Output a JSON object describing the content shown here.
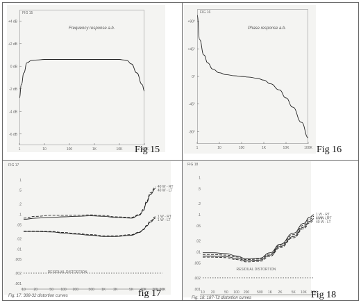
{
  "captions": {
    "fig15": "Fig 15",
    "fig16": "Fig 16",
    "fig17": "fig 17",
    "fig18": "Fig 18"
  },
  "chart_data": [
    {
      "type": "line",
      "id": "fig15",
      "corner_label": "FIG 15",
      "title": "Frequency response a.b.",
      "xscale": "log",
      "x_ticks": [
        {
          "v": 1,
          "t": "1"
        },
        {
          "v": 10,
          "t": "10"
        },
        {
          "v": 100,
          "t": "100"
        },
        {
          "v": 1000,
          "t": "1K"
        },
        {
          "v": 10000,
          "t": "10K"
        },
        {
          "v": 100000,
          "t": "100K"
        }
      ],
      "y_ticks": [
        {
          "v": 4,
          "t": "+4 dB"
        },
        {
          "v": 2,
          "t": "+2 dB"
        },
        {
          "v": 0,
          "t": "0 dB"
        },
        {
          "v": -2,
          "t": "-2 dB"
        },
        {
          "v": -4,
          "t": "-4 dB"
        },
        {
          "v": -6,
          "t": "-6 dB"
        }
      ],
      "ylim": [
        -7,
        5
      ],
      "series": [
        {
          "x": [
            1,
            1.2,
            1.5,
            2,
            3,
            5,
            10,
            30,
            100,
            1000,
            5000,
            10000,
            15000,
            20000,
            30000,
            50000,
            80000,
            100000
          ],
          "y": [
            -2.8,
            -1.6,
            -0.6,
            0.3,
            0.5,
            0.55,
            0.6,
            0.6,
            0.6,
            0.6,
            0.6,
            0.6,
            0.55,
            0.5,
            0.2,
            -0.6,
            -1.6,
            -2.2
          ]
        }
      ]
    },
    {
      "type": "line",
      "id": "fig16",
      "corner_label": "FIG 16",
      "title": "Phase response a.b.",
      "xscale": "log",
      "x_ticks": [
        {
          "v": 1,
          "t": "1"
        },
        {
          "v": 10,
          "t": "10"
        },
        {
          "v": 100,
          "t": "100"
        },
        {
          "v": 1000,
          "t": "1K"
        },
        {
          "v": 10000,
          "t": "10K"
        },
        {
          "v": 100000,
          "t": "100K"
        }
      ],
      "y_ticks": [
        {
          "v": 90,
          "t": "+90°"
        },
        {
          "v": 45,
          "t": "+45°"
        },
        {
          "v": 0,
          "t": "0°"
        },
        {
          "v": -45,
          "t": "-45°"
        },
        {
          "v": -90,
          "t": "-90°"
        }
      ],
      "ylim": [
        -110,
        110
      ],
      "series": [
        {
          "x": [
            1,
            1.3,
            2,
            3,
            5,
            10,
            20,
            50,
            100,
            200,
            500,
            1000,
            2000,
            5000,
            10000,
            20000,
            50000,
            100000
          ],
          "y": [
            100,
            60,
            35,
            22,
            12,
            6,
            3,
            1,
            0,
            -1,
            -3,
            -6,
            -12,
            -22,
            -35,
            -50,
            -75,
            -100
          ]
        }
      ]
    },
    {
      "type": "line",
      "id": "fig17",
      "corner_label": "FIG 17",
      "footnote": "Fig. 17. 308-32 distortion curves",
      "xscale": "log",
      "x_ticks": [
        {
          "v": 10,
          "t": "10"
        },
        {
          "v": 20,
          "t": "20"
        },
        {
          "v": 50,
          "t": "50"
        },
        {
          "v": 100,
          "t": "100"
        },
        {
          "v": 200,
          "t": "200"
        },
        {
          "v": 500,
          "t": "500"
        },
        {
          "v": 1000,
          "t": "1K"
        },
        {
          "v": 2000,
          "t": "2K"
        },
        {
          "v": 5000,
          "t": "5K"
        },
        {
          "v": 10000,
          "t": "10K"
        },
        {
          "v": 20000,
          "t": "20K"
        },
        {
          "v": 30000,
          "t": "30K"
        }
      ],
      "yscale": "log",
      "y_ticks": [
        {
          "v": 1,
          "t": "1"
        },
        {
          "v": 0.5,
          "t": ".5"
        },
        {
          "v": 0.2,
          "t": ".2"
        },
        {
          "v": 0.1,
          "t": ".1"
        },
        {
          "v": 0.05,
          "t": ".05"
        },
        {
          "v": 0.02,
          "t": ".02"
        },
        {
          "v": 0.01,
          "t": ".01"
        },
        {
          "v": 0.005,
          "t": ".005"
        },
        {
          "v": 0.002,
          "t": ".002"
        },
        {
          "v": 0.001,
          "t": ".001"
        }
      ],
      "ylim": [
        0.001,
        1.5
      ],
      "annotations": [
        {
          "text": "RESIDUAL DISTORTION",
          "x": 40,
          "y": 0.002
        }
      ],
      "reference_line": {
        "y": 0.002,
        "x": [
          10,
          30000
        ]
      },
      "series": [
        {
          "name": "40 W - RT",
          "style": "dash",
          "x": [
            10,
            20,
            50,
            100,
            200,
            500,
            1000,
            2000,
            5000,
            8000,
            10000,
            12000,
            15000,
            20000
          ],
          "y": [
            0.078,
            0.088,
            0.094,
            0.094,
            0.095,
            0.097,
            0.093,
            0.085,
            0.082,
            0.1,
            0.14,
            0.24,
            0.42,
            0.62
          ]
        },
        {
          "name": "40 W - LT",
          "style": "solid",
          "x": [
            10,
            20,
            50,
            100,
            200,
            500,
            1000,
            2000,
            5000,
            8000,
            10000,
            12000,
            15000,
            20000
          ],
          "y": [
            0.072,
            0.078,
            0.082,
            0.085,
            0.088,
            0.091,
            0.088,
            0.082,
            0.078,
            0.095,
            0.13,
            0.22,
            0.38,
            0.56
          ]
        },
        {
          "name": "1 W - RT",
          "style": "dash",
          "x": [
            10,
            20,
            50,
            100,
            200,
            500,
            1000,
            2000,
            5000,
            8000,
            10000,
            12000,
            15000,
            20000
          ],
          "y": [
            0.033,
            0.033,
            0.032,
            0.03,
            0.028,
            0.026,
            0.024,
            0.024,
            0.026,
            0.031,
            0.037,
            0.048,
            0.065,
            0.085
          ]
        },
        {
          "name": "1 W - LT",
          "style": "solid",
          "x": [
            10,
            20,
            50,
            100,
            200,
            500,
            1000,
            2000,
            5000,
            8000,
            10000,
            12000,
            15000,
            20000
          ],
          "y": [
            0.032,
            0.032,
            0.031,
            0.029,
            0.027,
            0.025,
            0.023,
            0.023,
            0.025,
            0.03,
            0.036,
            0.046,
            0.06,
            0.078
          ]
        }
      ]
    },
    {
      "type": "line",
      "id": "fig18",
      "corner_label": "FIG 18",
      "footnote": "Fig. 18. 187-T2 distortion curves",
      "xscale": "log",
      "x_ticks": [
        {
          "v": 10,
          "t": "10"
        },
        {
          "v": 20,
          "t": "20"
        },
        {
          "v": 50,
          "t": "50"
        },
        {
          "v": 100,
          "t": "100"
        },
        {
          "v": 200,
          "t": "200"
        },
        {
          "v": 500,
          "t": "500"
        },
        {
          "v": 1000,
          "t": "1K"
        },
        {
          "v": 2000,
          "t": "2K"
        },
        {
          "v": 5000,
          "t": "5K"
        },
        {
          "v": 10000,
          "t": "10K"
        },
        {
          "v": 20000,
          "t": "20K"
        }
      ],
      "yscale": "log",
      "y_ticks": [
        {
          "v": 1,
          "t": "1"
        },
        {
          "v": 0.5,
          "t": ".5"
        },
        {
          "v": 0.2,
          "t": ".2"
        },
        {
          "v": 0.1,
          "t": ".1"
        },
        {
          "v": 0.05,
          "t": ".05"
        },
        {
          "v": 0.02,
          "t": ".02"
        },
        {
          "v": 0.01,
          "t": ".01"
        },
        {
          "v": 0.005,
          "t": ".005"
        },
        {
          "v": 0.002,
          "t": ".002"
        },
        {
          "v": 0.001,
          "t": ".001"
        }
      ],
      "ylim": [
        0.001,
        1.5
      ],
      "annotations": [
        {
          "text": "RESIDUAL DISTORTION",
          "x": 100,
          "y": 0.0032
        }
      ],
      "reference_line": {
        "y": 0.002,
        "x": [
          10,
          20000
        ]
      },
      "series": [
        {
          "name": "1 W - RT",
          "style": "solid",
          "x": [
            10,
            20,
            50,
            100,
            200,
            500,
            1000,
            2000,
            5000,
            10000,
            15000,
            20000
          ],
          "y": [
            0.0095,
            0.0095,
            0.009,
            0.0078,
            0.0065,
            0.0068,
            0.0095,
            0.016,
            0.032,
            0.058,
            0.085,
            0.1
          ]
        },
        {
          "name": "40 W - RT",
          "style": "dash",
          "x": [
            10,
            20,
            50,
            100,
            200,
            500,
            1000,
            2000,
            5000,
            10000,
            15000,
            20000
          ],
          "y": [
            0.0085,
            0.0085,
            0.0082,
            0.0073,
            0.0062,
            0.0064,
            0.0088,
            0.015,
            0.029,
            0.052,
            0.075,
            0.09
          ]
        },
        {
          "name": "1 W - LT",
          "style": "solid",
          "x": [
            10,
            20,
            50,
            100,
            200,
            500,
            1000,
            2000,
            5000,
            10000,
            15000,
            20000
          ],
          "y": [
            0.0078,
            0.0078,
            0.0075,
            0.0067,
            0.0058,
            0.006,
            0.0082,
            0.014,
            0.026,
            0.046,
            0.066,
            0.078
          ]
        },
        {
          "name": "40 W - LT",
          "style": "dash",
          "x": [
            10,
            20,
            50,
            100,
            200,
            500,
            1000,
            2000,
            5000,
            10000,
            15000,
            20000
          ],
          "y": [
            0.0072,
            0.0072,
            0.007,
            0.0062,
            0.0054,
            0.0056,
            0.0076,
            0.013,
            0.024,
            0.042,
            0.06,
            0.07
          ]
        }
      ]
    }
  ]
}
